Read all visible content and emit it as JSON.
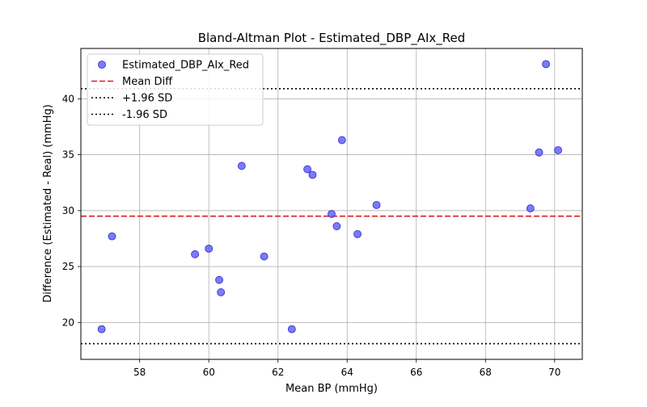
{
  "chart_data": {
    "type": "scatter",
    "title": "Bland-Altman Plot - Estimated_DBP_AIx_Red",
    "xlabel": "Mean BP (mmHg)",
    "ylabel": "Difference (Estimated - Real) (mmHg)",
    "xlim": [
      56.3,
      70.8
    ],
    "ylim": [
      16.7,
      44.5
    ],
    "xticks": [
      58,
      60,
      62,
      64,
      66,
      68,
      70
    ],
    "yticks": [
      20,
      25,
      30,
      35,
      40
    ],
    "grid": true,
    "legend_position": "top-left",
    "series": [
      {
        "name": "Estimated_DBP_AIx_Red",
        "color": "#5a5af5",
        "marker": "circle",
        "points": [
          {
            "x": 56.9,
            "y": 19.4
          },
          {
            "x": 57.2,
            "y": 27.7
          },
          {
            "x": 59.6,
            "y": 26.1
          },
          {
            "x": 60.0,
            "y": 26.6
          },
          {
            "x": 60.3,
            "y": 23.8
          },
          {
            "x": 60.35,
            "y": 22.7
          },
          {
            "x": 60.95,
            "y": 34.0
          },
          {
            "x": 61.6,
            "y": 25.9
          },
          {
            "x": 62.4,
            "y": 19.4
          },
          {
            "x": 62.85,
            "y": 33.7
          },
          {
            "x": 63.0,
            "y": 33.2
          },
          {
            "x": 63.55,
            "y": 29.7
          },
          {
            "x": 63.7,
            "y": 28.6
          },
          {
            "x": 63.85,
            "y": 36.3
          },
          {
            "x": 64.3,
            "y": 27.9
          },
          {
            "x": 64.85,
            "y": 30.5
          },
          {
            "x": 69.3,
            "y": 30.2
          },
          {
            "x": 69.55,
            "y": 35.2
          },
          {
            "x": 69.75,
            "y": 43.1
          },
          {
            "x": 70.1,
            "y": 35.4
          }
        ]
      }
    ],
    "lines": [
      {
        "name": "Mean Diff",
        "y": 29.5,
        "color": "#e31a1c",
        "style": "dashed"
      },
      {
        "name": "+1.96 SD",
        "y": 40.9,
        "color": "#000000",
        "style": "dotted"
      },
      {
        "name": "-1.96 SD",
        "y": 18.1,
        "color": "#000000",
        "style": "dotted"
      }
    ]
  }
}
